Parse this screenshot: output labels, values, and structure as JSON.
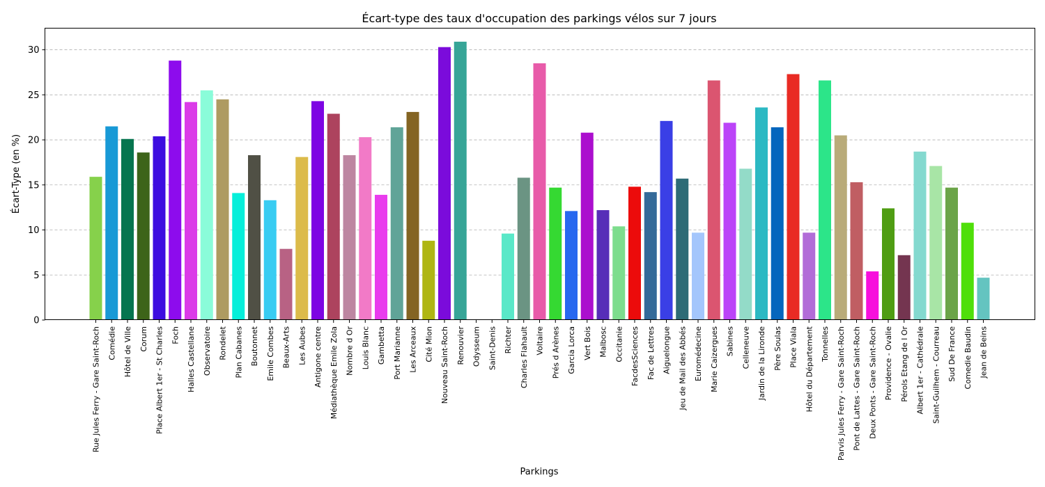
{
  "chart_data": {
    "type": "bar",
    "title": "Écart-type des taux d'occupation des parkings vélos sur 7 jours",
    "xlabel": "Parkings",
    "ylabel": "Écart-Type (en %)",
    "ylim": [
      0,
      32.4
    ],
    "yticks": [
      0,
      5,
      10,
      15,
      20,
      25,
      30
    ],
    "grid": "y",
    "categories": [
      "Rue Jules Ferry - Gare Saint-Roch",
      "Comédie",
      "Hôtel de Ville",
      "Corum",
      "Place Albert 1er - St Charles",
      "Foch",
      "Halles Castellane",
      "Observatoire",
      "Rondelet",
      "Plan Cabanes",
      "Boutonnet",
      "Emile Combes",
      "Beaux-Arts",
      "Les Aubes",
      "Antigone centre",
      "Médiathèque Emile Zola",
      "Nombre d Or",
      "Louis Blanc",
      "Gambetta",
      "Port Marianne",
      "Les Arceaux",
      "Cité Mion",
      "Nouveau Saint-Roch",
      "Renouvier",
      "Odysseum",
      "Saint-Denis",
      "Richter",
      "Charles Flahault",
      "Voltaire",
      "Prés d Arènes",
      "Garcia Lorca",
      "Vert Bois",
      "Malbosc",
      "Occitanie",
      "FacdesSciences",
      "Fac de Lettres",
      "Aiguelongue",
      "Jeu de Mail des Abbés",
      "Euromédecine",
      "Marie Caizergues",
      "Sabines",
      "Celleneuve",
      "Jardin de la Lironde",
      "Père Soulas",
      "Place Viala",
      "Hôtel du Département",
      "Tonnelles",
      "Parvis Jules Ferry - Gare Saint-Roch",
      "Pont de Lattes - Gare Saint-Roch",
      "Deux Ponts - Gare Saint-Roch",
      "Providence - Ovalie",
      "Pérols Etang de l Or",
      "Albert 1er - Cathédrale",
      "Saint-Guilhem - Courreau",
      "Sud De France",
      "Comedie Baudin",
      "Jean de Beins"
    ],
    "values": [
      15.9,
      21.5,
      20.1,
      18.6,
      20.4,
      28.8,
      24.2,
      25.5,
      24.5,
      14.1,
      18.3,
      13.3,
      7.9,
      18.1,
      24.3,
      22.9,
      18.3,
      20.3,
      13.9,
      21.4,
      23.1,
      8.8,
      30.3,
      30.9,
      0,
      0,
      9.6,
      15.8,
      28.5,
      14.7,
      12.1,
      20.8,
      12.2,
      10.4,
      14.8,
      14.2,
      22.1,
      15.7,
      9.7,
      26.6,
      21.9,
      16.8,
      23.6,
      21.4,
      27.3,
      9.7,
      26.6,
      20.5,
      15.3,
      5.4,
      12.4,
      7.2,
      18.7,
      17.1,
      14.7,
      10.8,
      4.7
    ],
    "colors": [
      "#86d14b",
      "#1899d6",
      "#06754f",
      "#3d6419",
      "#3d0de0",
      "#8d0ced",
      "#db3be8",
      "#8afcd9",
      "#ae9b61",
      "#06efda",
      "#505045",
      "#38ccf2",
      "#b86284",
      "#dcbb4a",
      "#7d05e3",
      "#ad435e",
      "#bd86a1",
      "#f27ac7",
      "#e93ced",
      "#60a498",
      "#846423",
      "#afb614",
      "#7b0bdb",
      "#37a597",
      "#cccccc",
      "#cccccc",
      "#5ae8c8",
      "#6b9483",
      "#e85ba9",
      "#35d932",
      "#2768ef",
      "#ab0fce",
      "#572eb8",
      "#7ddd8d",
      "#ec0b0b",
      "#346a99",
      "#3a3fe6",
      "#2d6b76",
      "#a4c6fc",
      "#db5570",
      "#bb44f8",
      "#93dbc8",
      "#2cb9c3",
      "#0566bd",
      "#e92b24",
      "#b26cd8",
      "#2ce589",
      "#b9ab79",
      "#c05e63",
      "#f70fdc",
      "#4f9d13",
      "#743550",
      "#84d9cf",
      "#a8e5a6",
      "#6ba448",
      "#4fdf0a",
      "#64c4c0"
    ]
  }
}
